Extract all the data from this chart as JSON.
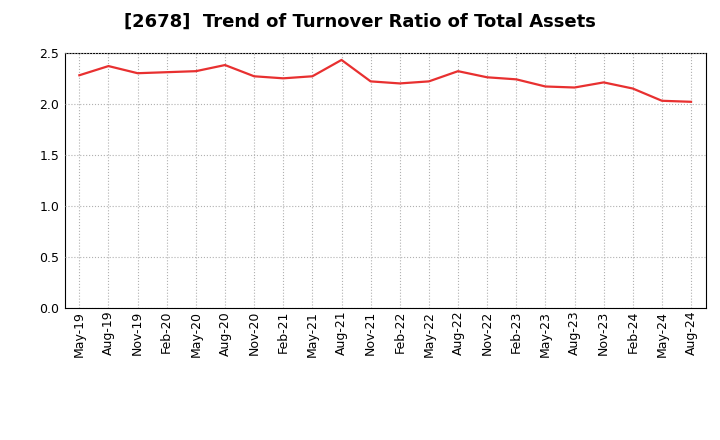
{
  "title": "[2678]  Trend of Turnover Ratio of Total Assets",
  "x_labels": [
    "May-19",
    "Aug-19",
    "Nov-19",
    "Feb-20",
    "May-20",
    "Aug-20",
    "Nov-20",
    "Feb-21",
    "May-21",
    "Aug-21",
    "Nov-21",
    "Feb-22",
    "May-22",
    "Aug-22",
    "Nov-22",
    "Feb-23",
    "May-23",
    "Aug-23",
    "Nov-23",
    "Feb-24",
    "May-24",
    "Aug-24"
  ],
  "y_values": [
    2.28,
    2.37,
    2.3,
    2.31,
    2.32,
    2.38,
    2.27,
    2.25,
    2.27,
    2.43,
    2.22,
    2.2,
    2.22,
    2.32,
    2.26,
    2.24,
    2.17,
    2.16,
    2.21,
    2.15,
    2.03,
    2.02
  ],
  "line_color": "#e83030",
  "background_color": "#ffffff",
  "grid_color": "#b0b0b0",
  "ylim": [
    0.0,
    2.5
  ],
  "yticks": [
    0.0,
    0.5,
    1.0,
    1.5,
    2.0,
    2.5
  ],
  "title_fontsize": 13,
  "tick_fontsize": 9,
  "line_width": 1.6
}
